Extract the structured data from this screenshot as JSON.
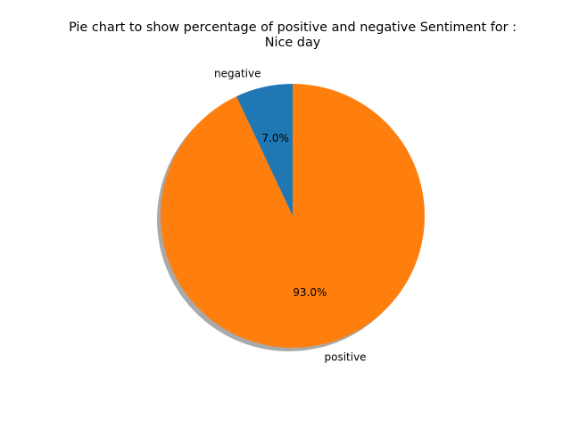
{
  "chart_data": {
    "type": "pie",
    "title_lines": [
      "Pie chart to show percentage of positive and negative Sentiment for :",
      "Nice day"
    ],
    "categories": [
      "negative",
      "positive"
    ],
    "values": [
      7.0,
      93.0
    ],
    "percent_labels": [
      "7.0%",
      "93.0%"
    ],
    "colors": [
      "#1f77b4",
      "#ff7f0e"
    ],
    "start_angle_deg": 90,
    "shadow": true,
    "legend": "none"
  }
}
